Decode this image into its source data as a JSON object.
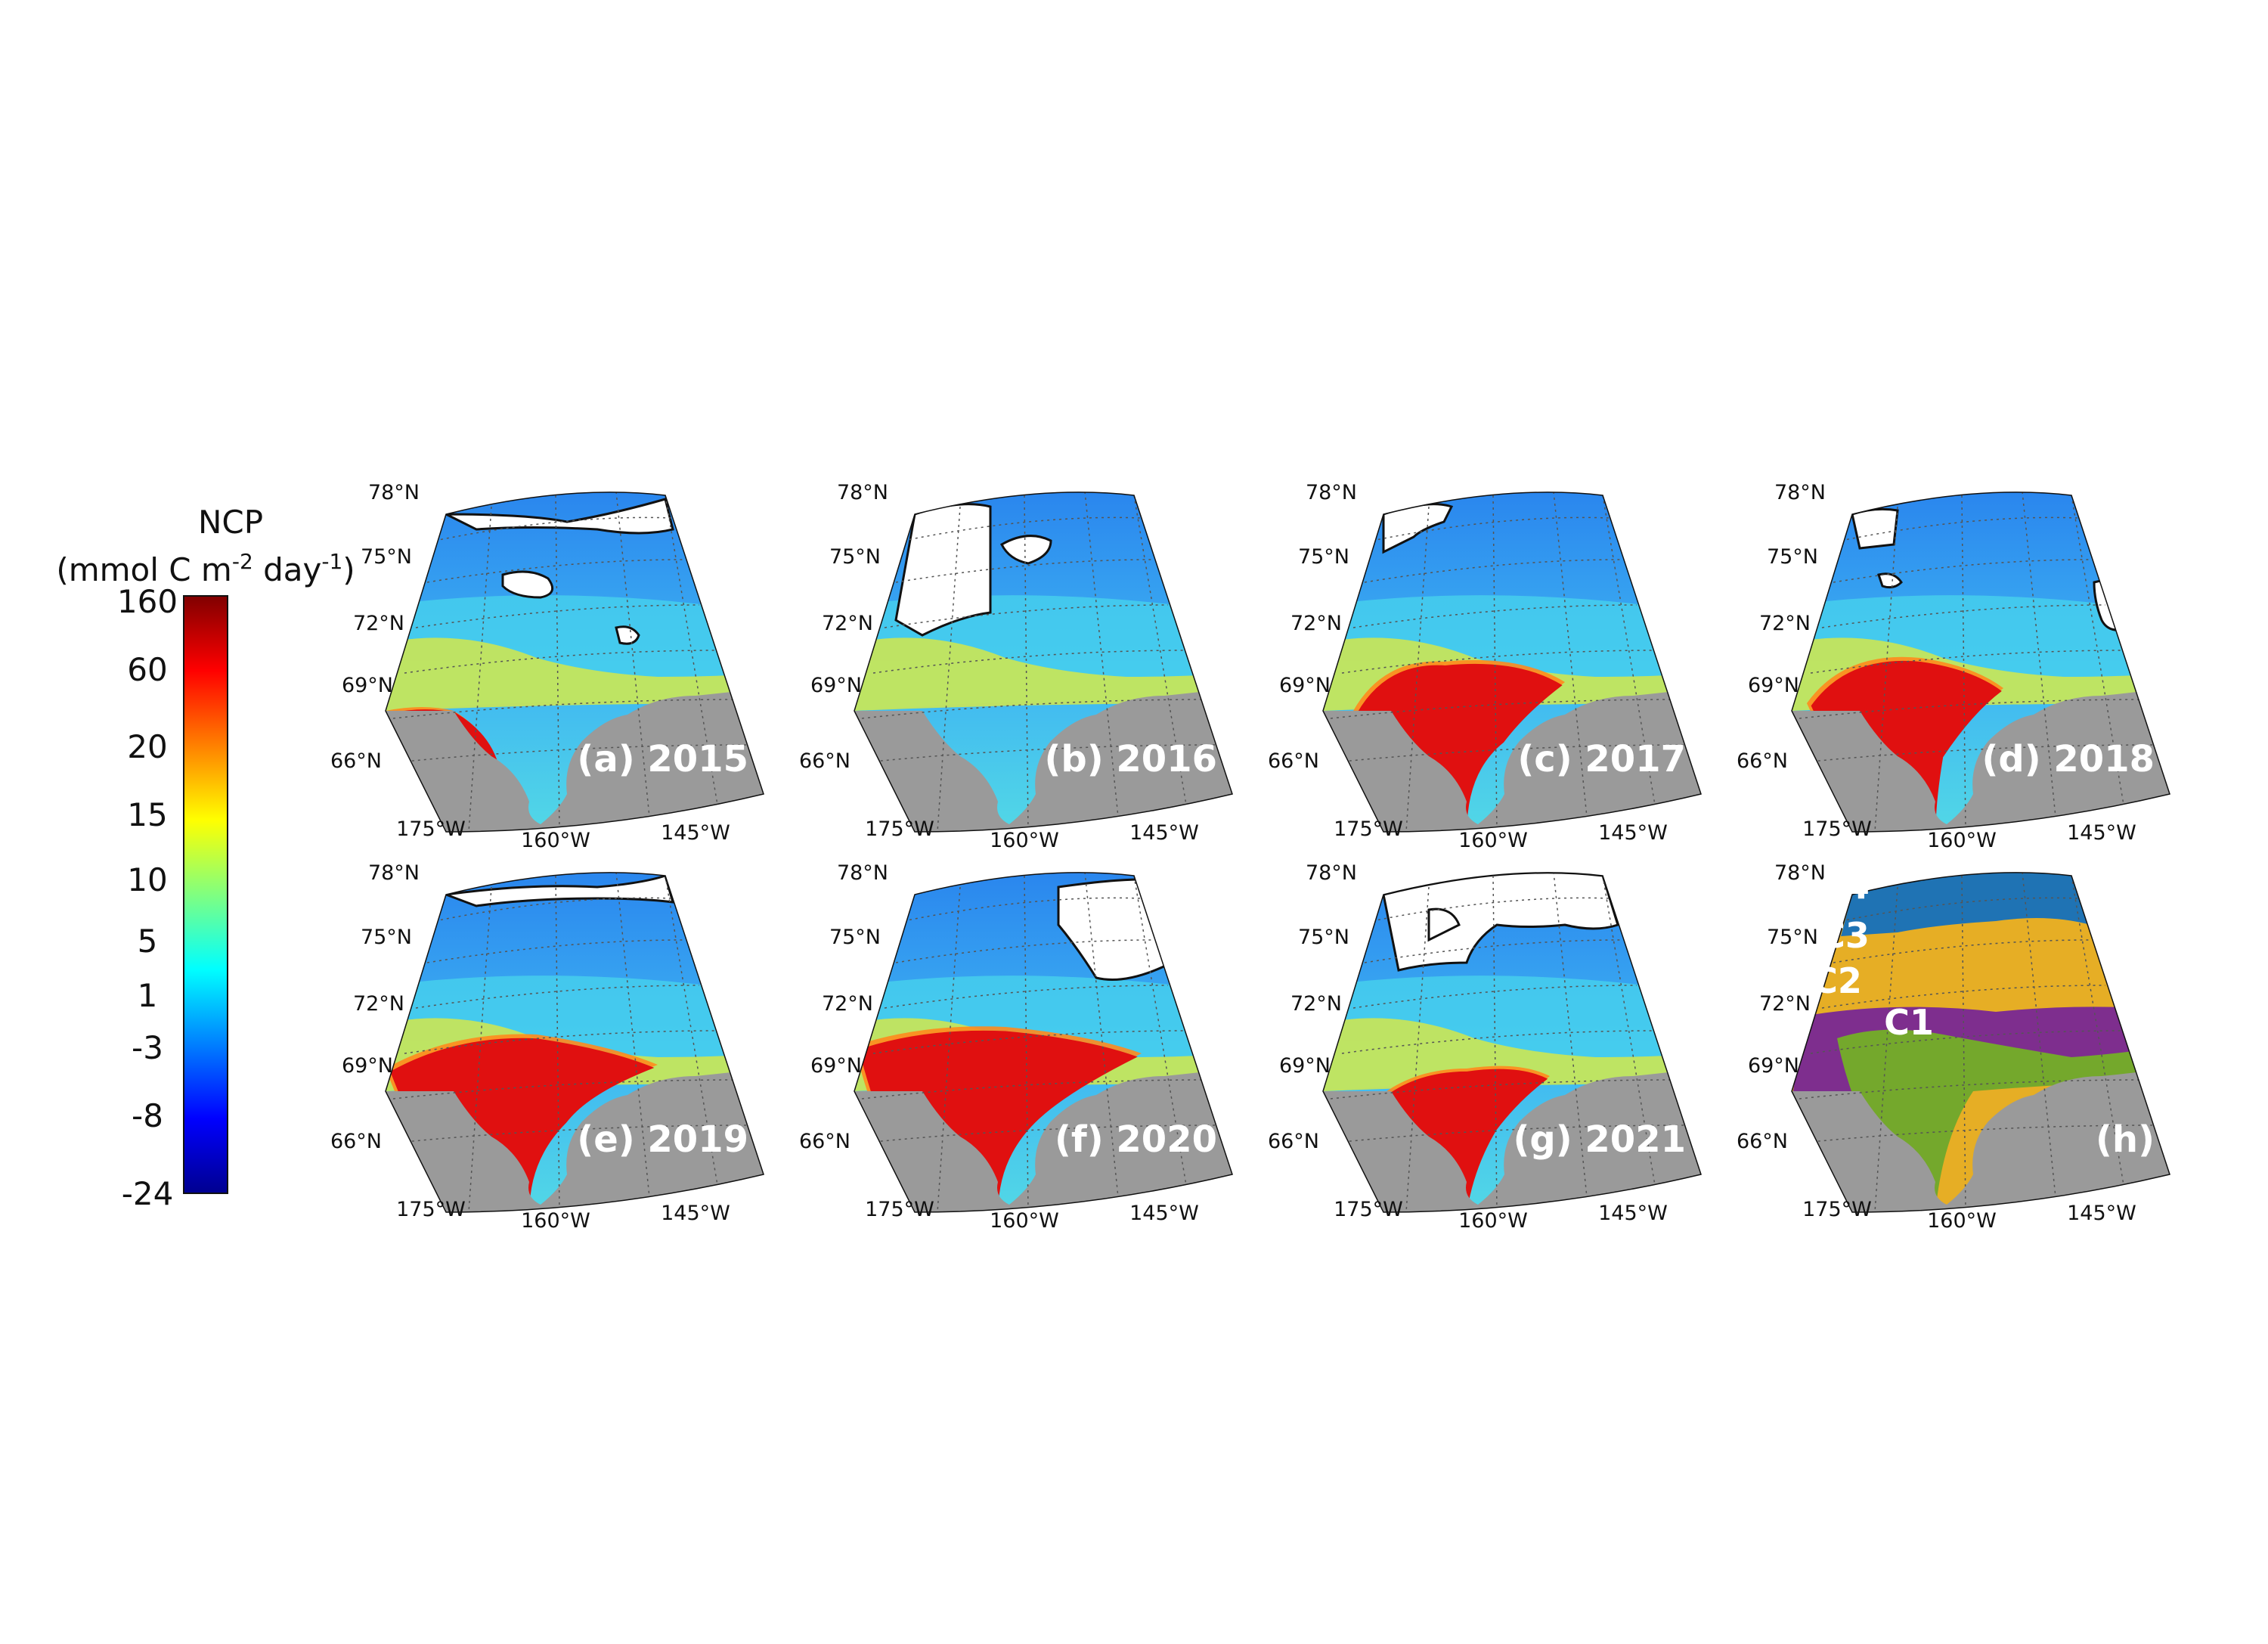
{
  "colorbar": {
    "title": "NCP",
    "units_prefix": "(mmol C m",
    "units_exp1": "-2",
    "units_mid": " day",
    "units_exp2": "-1",
    "units_suffix": ")",
    "ticks": [
      "160",
      "60",
      "20",
      "15",
      "10",
      "5",
      "1",
      "-3",
      "-8",
      "-24"
    ],
    "colormap": [
      "#00008f",
      "#0000ff",
      "#0080ff",
      "#00ffff",
      "#80ff80",
      "#ffff00",
      "#ff8000",
      "#ff0000",
      "#800000"
    ]
  },
  "axes": {
    "lat_labels": [
      "78°N",
      "75°N",
      "72°N",
      "69°N",
      "66°N"
    ],
    "lon_labels": [
      "175°W",
      "160°W",
      "145°W"
    ]
  },
  "panels": [
    {
      "label": "(a) 2015"
    },
    {
      "label": "(b) 2016"
    },
    {
      "label": "(c) 2017"
    },
    {
      "label": "(d) 2018"
    },
    {
      "label": "(e) 2019"
    },
    {
      "label": "(f) 2020"
    },
    {
      "label": "(g) 2021"
    },
    {
      "label": "(h)"
    }
  ],
  "clusters": [
    {
      "name": "C4",
      "color": "#1f73b4"
    },
    {
      "name": "C3",
      "color": "#e6ae25"
    },
    {
      "name": "C2",
      "color": "#7e2e8e"
    },
    {
      "name": "C1",
      "color": "#74a82c"
    }
  ],
  "colors": {
    "land": "#9a9a9a",
    "ice": "#ffffff",
    "ocean_low": "#2f8ef0",
    "ocean_mid": "#38c6f0",
    "ncp_high": "#e01010"
  }
}
